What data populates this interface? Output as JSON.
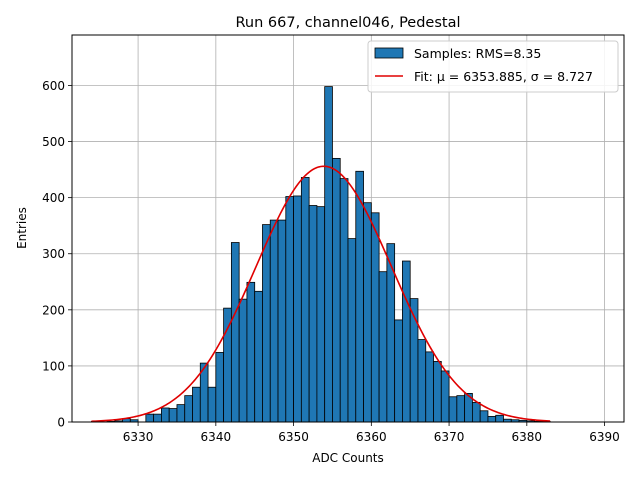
{
  "chart_data": {
    "type": "bar",
    "title": "Run 667, channel046, Pedestal",
    "xlabel": "ADC Counts",
    "ylabel": "Entries",
    "xlim": [
      6321.5,
      6392.5
    ],
    "ylim": [
      0,
      690
    ],
    "x_ticks": [
      6330,
      6340,
      6350,
      6360,
      6370,
      6380,
      6390
    ],
    "y_ticks": [
      0,
      100,
      200,
      300,
      400,
      500,
      600
    ],
    "grid": true,
    "legend_position": "top-right",
    "legend": [
      "Samples: RMS=8.35",
      "Fit: μ = 6353.885, σ = 8.727"
    ],
    "bin_width": 1,
    "series": [
      {
        "name": "Samples: RMS=8.35",
        "kind": "histogram",
        "color": "#1f77b4",
        "bin_left_edges": [
          6324,
          6325,
          6326,
          6327,
          6328,
          6329,
          6330,
          6331,
          6332,
          6333,
          6334,
          6335,
          6336,
          6337,
          6338,
          6339,
          6340,
          6341,
          6342,
          6343,
          6344,
          6345,
          6346,
          6347,
          6348,
          6349,
          6350,
          6351,
          6352,
          6353,
          6354,
          6355,
          6356,
          6357,
          6358,
          6359,
          6360,
          6361,
          6362,
          6363,
          6364,
          6365,
          6366,
          6367,
          6368,
          6369,
          6370,
          6371,
          6372,
          6373,
          6374,
          6375,
          6376,
          6377,
          6378,
          6379,
          6380,
          6381,
          6382
        ],
        "values": [
          1,
          0,
          1,
          2,
          6,
          4,
          0,
          14,
          14,
          25,
          24,
          31,
          47,
          62,
          105,
          62,
          124,
          203,
          320,
          219,
          249,
          233,
          352,
          360,
          360,
          402,
          403,
          436,
          386,
          384,
          598,
          470,
          434,
          327,
          447,
          391,
          373,
          268,
          318,
          182,
          287,
          220,
          147,
          125,
          108,
          91,
          45,
          47,
          51,
          35,
          20,
          10,
          12,
          5,
          4,
          3,
          2,
          1,
          1
        ]
      },
      {
        "name": "Fit: μ = 6353.885, σ = 8.727",
        "kind": "gaussian",
        "color": "#e00000",
        "mu": 6353.885,
        "sigma": 8.727,
        "amplitude": 456,
        "x_range": [
          6324,
          6383
        ]
      }
    ]
  }
}
